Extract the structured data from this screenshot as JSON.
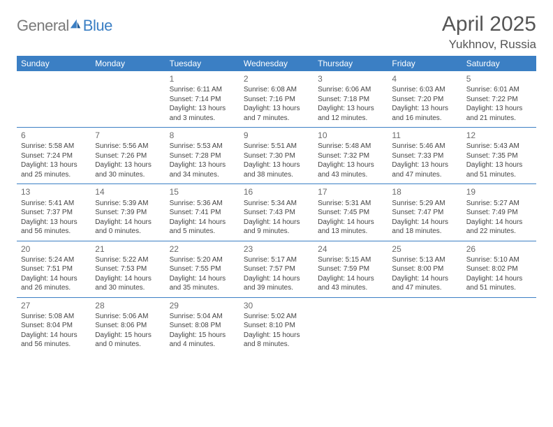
{
  "brand": {
    "name_a": "General",
    "name_b": "Blue"
  },
  "title": "April 2025",
  "location": "Yukhnov, Russia",
  "colors": {
    "header_bg": "#3b7fc4",
    "text": "#444444",
    "title": "#555555"
  },
  "day_names": [
    "Sunday",
    "Monday",
    "Tuesday",
    "Wednesday",
    "Thursday",
    "Friday",
    "Saturday"
  ],
  "weeks": [
    [
      null,
      null,
      {
        "n": "1",
        "sr": "6:11 AM",
        "ss": "7:14 PM",
        "dl": "13 hours and 3 minutes."
      },
      {
        "n": "2",
        "sr": "6:08 AM",
        "ss": "7:16 PM",
        "dl": "13 hours and 7 minutes."
      },
      {
        "n": "3",
        "sr": "6:06 AM",
        "ss": "7:18 PM",
        "dl": "13 hours and 12 minutes."
      },
      {
        "n": "4",
        "sr": "6:03 AM",
        "ss": "7:20 PM",
        "dl": "13 hours and 16 minutes."
      },
      {
        "n": "5",
        "sr": "6:01 AM",
        "ss": "7:22 PM",
        "dl": "13 hours and 21 minutes."
      }
    ],
    [
      {
        "n": "6",
        "sr": "5:58 AM",
        "ss": "7:24 PM",
        "dl": "13 hours and 25 minutes."
      },
      {
        "n": "7",
        "sr": "5:56 AM",
        "ss": "7:26 PM",
        "dl": "13 hours and 30 minutes."
      },
      {
        "n": "8",
        "sr": "5:53 AM",
        "ss": "7:28 PM",
        "dl": "13 hours and 34 minutes."
      },
      {
        "n": "9",
        "sr": "5:51 AM",
        "ss": "7:30 PM",
        "dl": "13 hours and 38 minutes."
      },
      {
        "n": "10",
        "sr": "5:48 AM",
        "ss": "7:32 PM",
        "dl": "13 hours and 43 minutes."
      },
      {
        "n": "11",
        "sr": "5:46 AM",
        "ss": "7:33 PM",
        "dl": "13 hours and 47 minutes."
      },
      {
        "n": "12",
        "sr": "5:43 AM",
        "ss": "7:35 PM",
        "dl": "13 hours and 51 minutes."
      }
    ],
    [
      {
        "n": "13",
        "sr": "5:41 AM",
        "ss": "7:37 PM",
        "dl": "13 hours and 56 minutes."
      },
      {
        "n": "14",
        "sr": "5:39 AM",
        "ss": "7:39 PM",
        "dl": "14 hours and 0 minutes."
      },
      {
        "n": "15",
        "sr": "5:36 AM",
        "ss": "7:41 PM",
        "dl": "14 hours and 5 minutes."
      },
      {
        "n": "16",
        "sr": "5:34 AM",
        "ss": "7:43 PM",
        "dl": "14 hours and 9 minutes."
      },
      {
        "n": "17",
        "sr": "5:31 AM",
        "ss": "7:45 PM",
        "dl": "14 hours and 13 minutes."
      },
      {
        "n": "18",
        "sr": "5:29 AM",
        "ss": "7:47 PM",
        "dl": "14 hours and 18 minutes."
      },
      {
        "n": "19",
        "sr": "5:27 AM",
        "ss": "7:49 PM",
        "dl": "14 hours and 22 minutes."
      }
    ],
    [
      {
        "n": "20",
        "sr": "5:24 AM",
        "ss": "7:51 PM",
        "dl": "14 hours and 26 minutes."
      },
      {
        "n": "21",
        "sr": "5:22 AM",
        "ss": "7:53 PM",
        "dl": "14 hours and 30 minutes."
      },
      {
        "n": "22",
        "sr": "5:20 AM",
        "ss": "7:55 PM",
        "dl": "14 hours and 35 minutes."
      },
      {
        "n": "23",
        "sr": "5:17 AM",
        "ss": "7:57 PM",
        "dl": "14 hours and 39 minutes."
      },
      {
        "n": "24",
        "sr": "5:15 AM",
        "ss": "7:59 PM",
        "dl": "14 hours and 43 minutes."
      },
      {
        "n": "25",
        "sr": "5:13 AM",
        "ss": "8:00 PM",
        "dl": "14 hours and 47 minutes."
      },
      {
        "n": "26",
        "sr": "5:10 AM",
        "ss": "8:02 PM",
        "dl": "14 hours and 51 minutes."
      }
    ],
    [
      {
        "n": "27",
        "sr": "5:08 AM",
        "ss": "8:04 PM",
        "dl": "14 hours and 56 minutes."
      },
      {
        "n": "28",
        "sr": "5:06 AM",
        "ss": "8:06 PM",
        "dl": "15 hours and 0 minutes."
      },
      {
        "n": "29",
        "sr": "5:04 AM",
        "ss": "8:08 PM",
        "dl": "15 hours and 4 minutes."
      },
      {
        "n": "30",
        "sr": "5:02 AM",
        "ss": "8:10 PM",
        "dl": "15 hours and 8 minutes."
      },
      null,
      null,
      null
    ]
  ],
  "labels": {
    "sunrise": "Sunrise:",
    "sunset": "Sunset:",
    "daylight": "Daylight:"
  }
}
